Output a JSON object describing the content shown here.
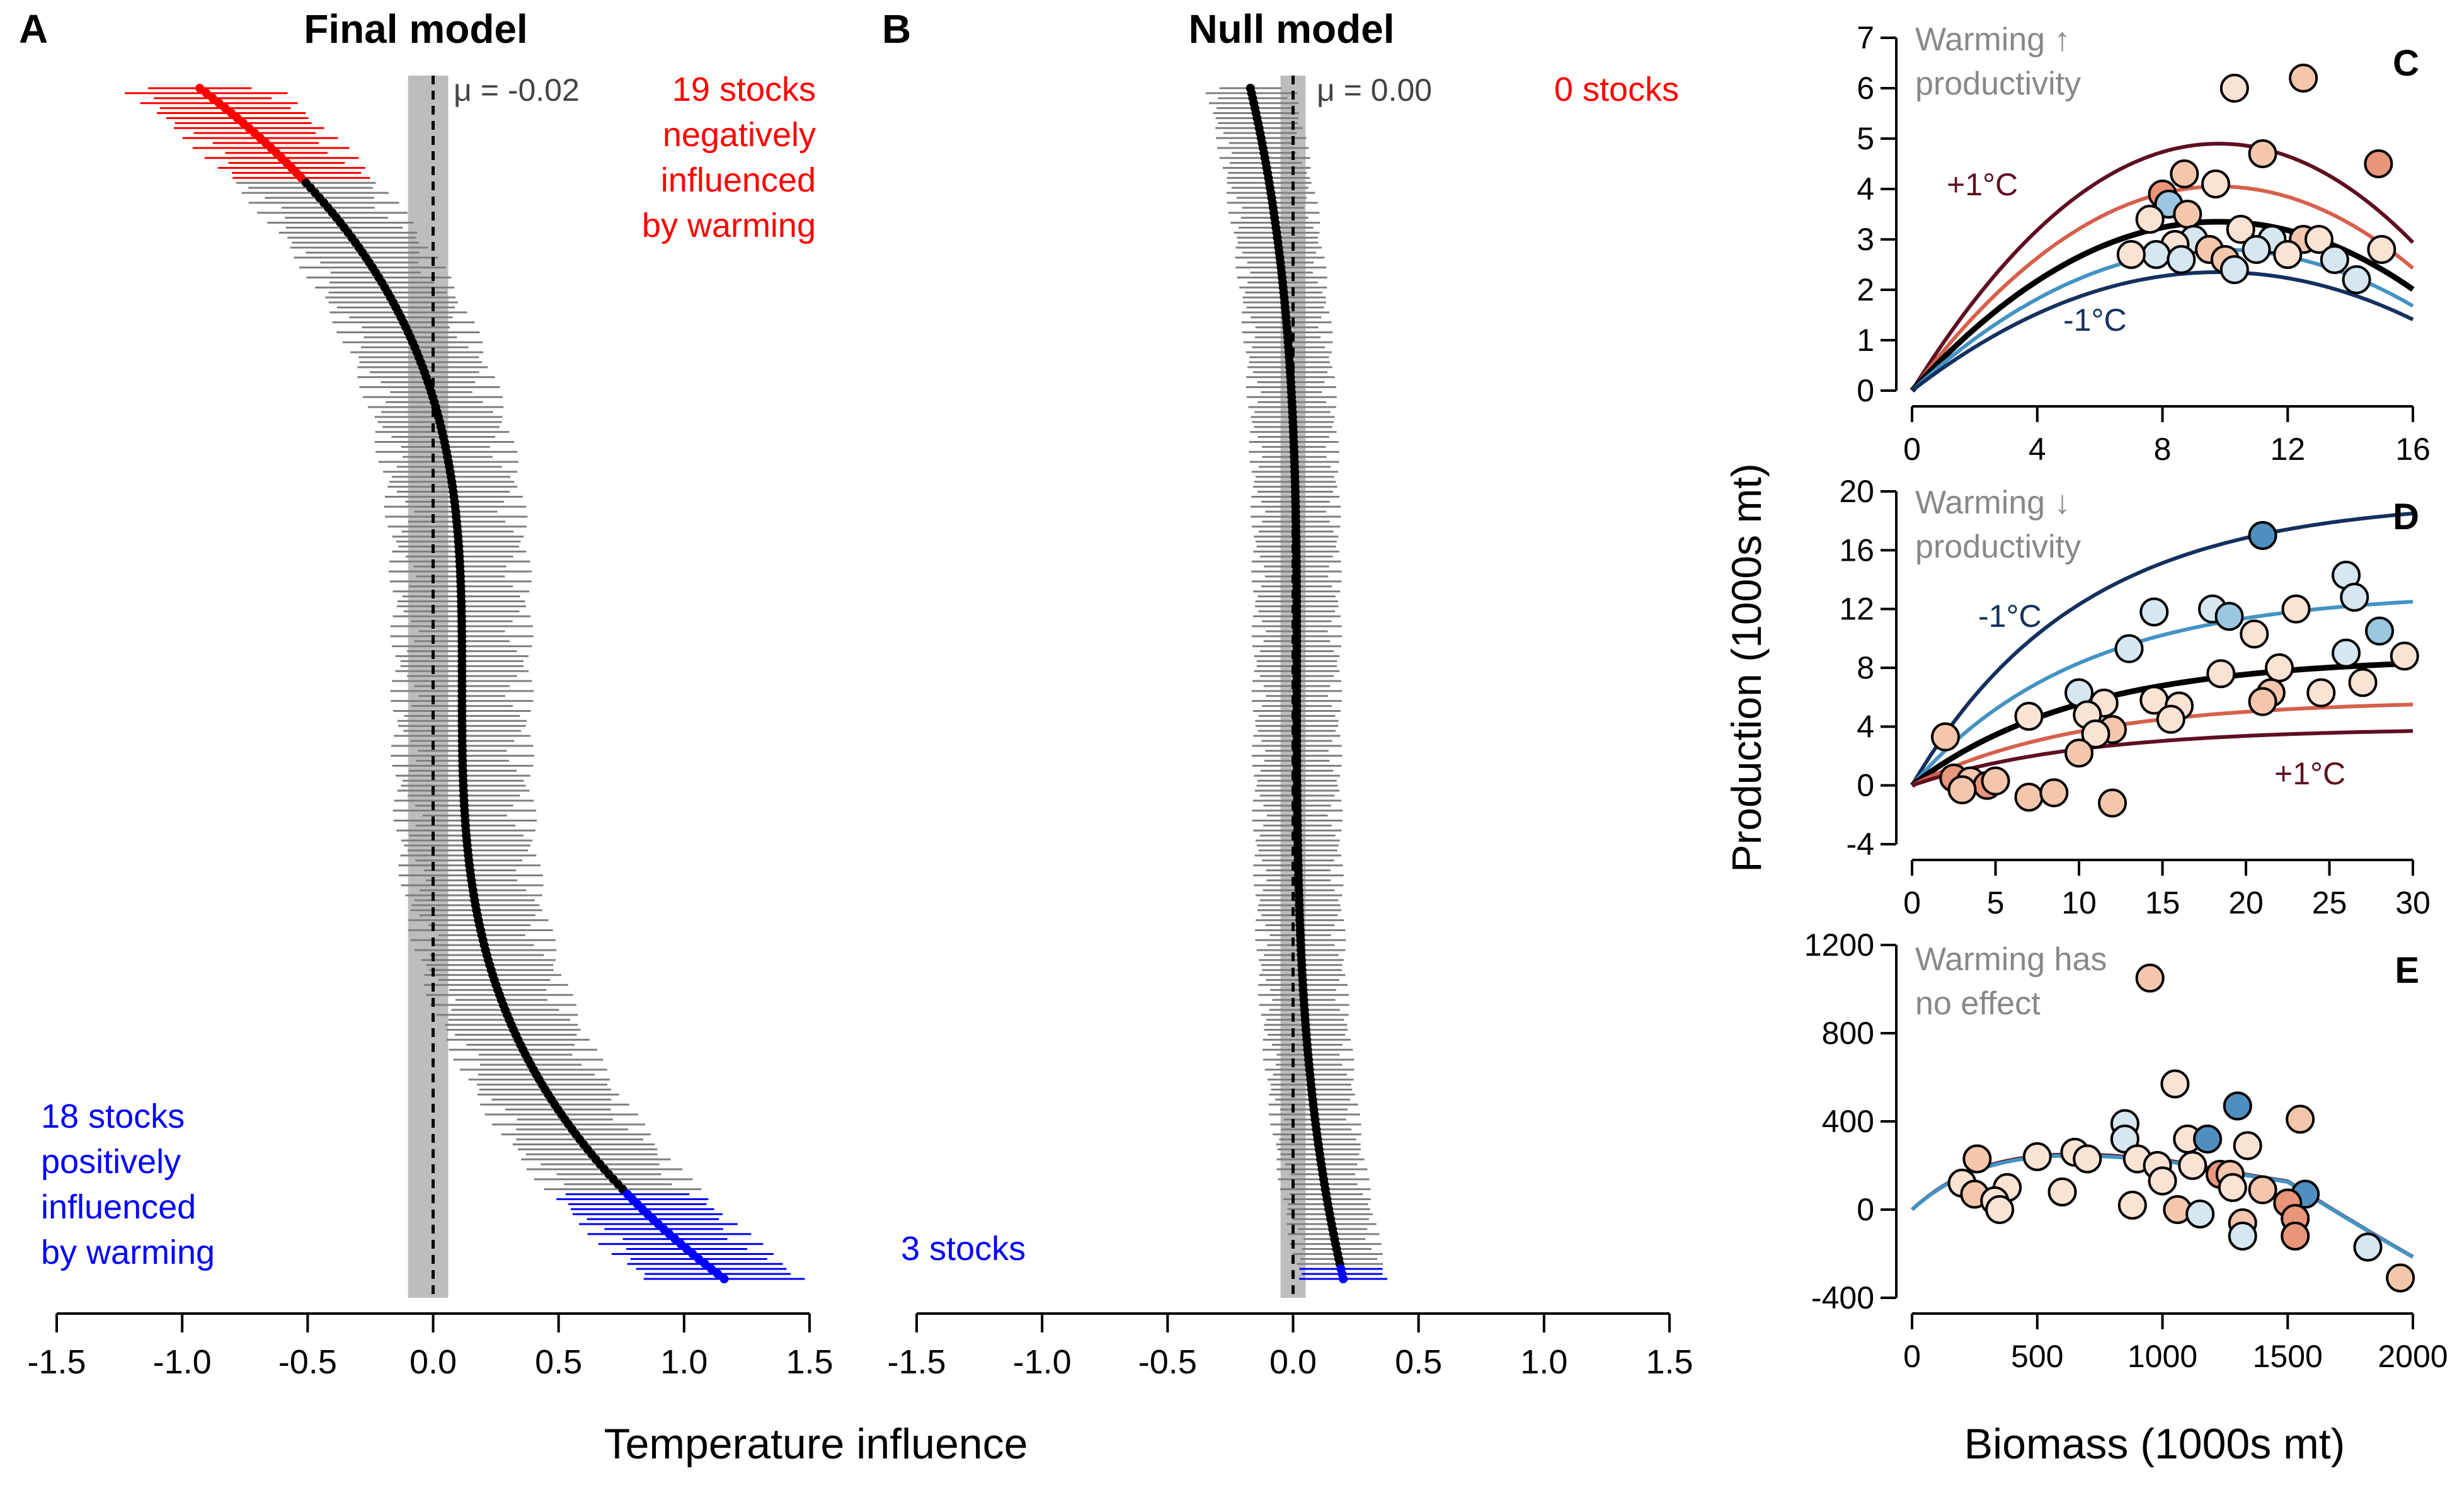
{
  "figure": {
    "colors": {
      "negative": "#ff0000",
      "positive": "#0000ff",
      "neutral_bar": "#7f7f7f",
      "shade": "#bdbdbd",
      "point": "#000000",
      "mu_text": "#444444",
      "note_text": "#888888",
      "warm_dark": "#5e0f22",
      "warm_light": "#d6604d",
      "cool_light": "#4393c3",
      "cool_dark": "#14305e"
    },
    "xaxis_label": "Temperature influence",
    "ylabel_right": "Production (1000s mt)",
    "xlabel_right": "Biomass (1000s mt)"
  },
  "chart_data": [
    {
      "id": "A",
      "panel_letter": "A",
      "type": "forest",
      "title": "Final model",
      "xlim": [
        -1.5,
        1.5
      ],
      "x_ticks": [
        "-1.5",
        "-1.0",
        "-0.5",
        "0.0",
        "0.5",
        "1.0",
        "1.5"
      ],
      "n_stocks": 240,
      "mean_label": "μ = -0.02",
      "mean": -0.02,
      "shade_range": [
        -0.1,
        0.06
      ],
      "estimate_range": [
        -0.93,
        1.16
      ],
      "negative_count": 19,
      "positive_count": 18,
      "negative_note": [
        "19 stocks",
        "negatively",
        "influenced",
        "by warming"
      ],
      "positive_note": [
        "18 stocks",
        "positively",
        "influenced",
        "by warming"
      ]
    },
    {
      "id": "B",
      "panel_letter": "B",
      "type": "forest",
      "title": "Null model",
      "xlim": [
        -1.5,
        1.5
      ],
      "x_ticks": [
        "-1.5",
        "-1.0",
        "-0.5",
        "0.0",
        "0.5",
        "1.0",
        "1.5"
      ],
      "n_stocks": 240,
      "mean_label": "μ = 0.00",
      "mean": 0.0,
      "shade_range": [
        -0.05,
        0.05
      ],
      "estimate_range": [
        -0.17,
        0.2
      ],
      "negative_count": 0,
      "positive_count": 3,
      "negative_note": [
        "0 stocks"
      ],
      "positive_note": [
        "3 stocks"
      ]
    },
    {
      "id": "C",
      "panel_letter": "C",
      "type": "scatter",
      "note": [
        "Warming ↑",
        "productivity"
      ],
      "xlim": [
        0,
        16
      ],
      "ylim": [
        0,
        7
      ],
      "x_ticks": [
        "0",
        "4",
        "8",
        "12",
        "16"
      ],
      "y_ticks": [
        "0",
        "1",
        "2",
        "3",
        "4",
        "5",
        "6",
        "7"
      ],
      "curve_labels": [
        "+1°C",
        "-1°C"
      ],
      "curves": [
        {
          "label": "+1°C",
          "peak_x": 9.8,
          "peak_y": 4.9,
          "role": "warm_dark"
        },
        {
          "label": "",
          "peak_x": 9.8,
          "peak_y": 4.05,
          "role": "warm_light"
        },
        {
          "label": "",
          "peak_x": 9.8,
          "peak_y": 3.35,
          "role": "black"
        },
        {
          "label": "",
          "peak_x": 9.8,
          "peak_y": 2.8,
          "role": "cool_light"
        },
        {
          "label": "-1°C",
          "peak_x": 9.8,
          "peak_y": 2.35,
          "role": "cool_dark"
        }
      ],
      "points": [
        {
          "x": 10.3,
          "y": 6.0,
          "c": "#fbe3d4"
        },
        {
          "x": 12.5,
          "y": 6.2,
          "c": "#f4c7ac"
        },
        {
          "x": 11.2,
          "y": 4.7,
          "c": "#f4c7ac"
        },
        {
          "x": 14.9,
          "y": 4.5,
          "c": "#e9957a"
        },
        {
          "x": 8.7,
          "y": 4.3,
          "c": "#f4c7ac"
        },
        {
          "x": 8.0,
          "y": 3.9,
          "c": "#e9957a"
        },
        {
          "x": 9.7,
          "y": 4.1,
          "c": "#fbe3d4"
        },
        {
          "x": 8.2,
          "y": 3.7,
          "c": "#9bc7e0"
        },
        {
          "x": 7.6,
          "y": 3.4,
          "c": "#fbe3d4"
        },
        {
          "x": 8.8,
          "y": 3.5,
          "c": "#f4c7ac"
        },
        {
          "x": 10.5,
          "y": 3.2,
          "c": "#fbe3d4"
        },
        {
          "x": 11.5,
          "y": 3.0,
          "c": "#d6e7f1"
        },
        {
          "x": 12.5,
          "y": 3.0,
          "c": "#f4c7ac"
        },
        {
          "x": 13.0,
          "y": 3.0,
          "c": "#fbe3d4"
        },
        {
          "x": 9.0,
          "y": 3.0,
          "c": "#d6e7f1"
        },
        {
          "x": 9.5,
          "y": 2.8,
          "c": "#f4c7ac"
        },
        {
          "x": 8.4,
          "y": 2.9,
          "c": "#fbe3d4"
        },
        {
          "x": 7.8,
          "y": 2.7,
          "c": "#d6e7f1"
        },
        {
          "x": 7.0,
          "y": 2.7,
          "c": "#fbe3d4"
        },
        {
          "x": 10.0,
          "y": 2.6,
          "c": "#f4c7ac"
        },
        {
          "x": 11.0,
          "y": 2.8,
          "c": "#d6e7f1"
        },
        {
          "x": 12.0,
          "y": 2.7,
          "c": "#fbe3d4"
        },
        {
          "x": 13.5,
          "y": 2.6,
          "c": "#d6e7f1"
        },
        {
          "x": 14.2,
          "y": 2.2,
          "c": "#d6e7f1"
        },
        {
          "x": 15.0,
          "y": 2.8,
          "c": "#fbe3d4"
        },
        {
          "x": 10.3,
          "y": 2.4,
          "c": "#d6e7f1"
        },
        {
          "x": 8.6,
          "y": 2.6,
          "c": "#d6e7f1"
        }
      ]
    },
    {
      "id": "D",
      "panel_letter": "D",
      "type": "scatter",
      "note": [
        "Warming ↓",
        "productivity"
      ],
      "xlim": [
        0,
        30
      ],
      "ylim": [
        -4,
        20
      ],
      "x_ticks": [
        "0",
        "5",
        "10",
        "15",
        "20",
        "25",
        "30"
      ],
      "y_ticks": [
        "-4",
        "0",
        "4",
        "8",
        "12",
        "16",
        "20"
      ],
      "curve_labels": [
        "-1°C",
        "+1°C"
      ],
      "curves": [
        {
          "label": "-1°C",
          "peak_x": 30,
          "peak_y": 18.5,
          "role": "cool_dark"
        },
        {
          "label": "",
          "peak_x": 30,
          "peak_y": 12.5,
          "role": "cool_light"
        },
        {
          "label": "",
          "peak_x": 30,
          "peak_y": 8.3,
          "role": "black"
        },
        {
          "label": "",
          "peak_x": 30,
          "peak_y": 5.5,
          "role": "warm_light"
        },
        {
          "label": "+1°C",
          "peak_x": 30,
          "peak_y": 3.7,
          "role": "warm_dark"
        }
      ],
      "points": [
        {
          "x": 21.0,
          "y": 17.0,
          "c": "#4f8fc0"
        },
        {
          "x": 26.0,
          "y": 14.3,
          "c": "#d6e7f1"
        },
        {
          "x": 18.0,
          "y": 12.0,
          "c": "#d6e7f1"
        },
        {
          "x": 19.0,
          "y": 11.5,
          "c": "#9bc7e0"
        },
        {
          "x": 23.0,
          "y": 12.0,
          "c": "#fbe3d4"
        },
        {
          "x": 26.5,
          "y": 12.8,
          "c": "#d6e7f1"
        },
        {
          "x": 14.5,
          "y": 11.8,
          "c": "#d6e7f1"
        },
        {
          "x": 20.5,
          "y": 10.3,
          "c": "#fbe3d4"
        },
        {
          "x": 28.0,
          "y": 10.5,
          "c": "#9bc7e0"
        },
        {
          "x": 13.0,
          "y": 9.3,
          "c": "#d6e7f1"
        },
        {
          "x": 26.0,
          "y": 9.0,
          "c": "#d6e7f1"
        },
        {
          "x": 29.5,
          "y": 8.8,
          "c": "#fbe3d4"
        },
        {
          "x": 18.5,
          "y": 7.6,
          "c": "#fbe3d4"
        },
        {
          "x": 22.0,
          "y": 8.0,
          "c": "#fbe3d4"
        },
        {
          "x": 27.0,
          "y": 7.0,
          "c": "#fbe3d4"
        },
        {
          "x": 10.0,
          "y": 6.3,
          "c": "#d6e7f1"
        },
        {
          "x": 11.5,
          "y": 5.6,
          "c": "#fbe3d4"
        },
        {
          "x": 14.5,
          "y": 5.8,
          "c": "#fbe3d4"
        },
        {
          "x": 16.0,
          "y": 5.4,
          "c": "#fbe3d4"
        },
        {
          "x": 21.5,
          "y": 6.3,
          "c": "#f4c7ac"
        },
        {
          "x": 24.5,
          "y": 6.3,
          "c": "#fbe3d4"
        },
        {
          "x": 15.5,
          "y": 4.5,
          "c": "#fbe3d4"
        },
        {
          "x": 10.5,
          "y": 4.8,
          "c": "#fbe3d4"
        },
        {
          "x": 12.0,
          "y": 3.8,
          "c": "#f4c7ac"
        },
        {
          "x": 11.0,
          "y": 3.5,
          "c": "#fbe3d4"
        },
        {
          "x": 7.0,
          "y": 4.7,
          "c": "#fbe3d4"
        },
        {
          "x": 21.0,
          "y": 5.7,
          "c": "#f4c7ac"
        },
        {
          "x": 2.0,
          "y": 3.3,
          "c": "#f4c7ac"
        },
        {
          "x": 2.5,
          "y": 0.5,
          "c": "#e9957a"
        },
        {
          "x": 3.5,
          "y": 0.3,
          "c": "#f4c7ac"
        },
        {
          "x": 4.5,
          "y": 0.0,
          "c": "#e9957a"
        },
        {
          "x": 5.0,
          "y": 0.3,
          "c": "#f4c7ac"
        },
        {
          "x": 3.0,
          "y": -0.3,
          "c": "#f4c7ac"
        },
        {
          "x": 7.0,
          "y": -0.8,
          "c": "#f4c7ac"
        },
        {
          "x": 8.5,
          "y": -0.5,
          "c": "#f4c7ac"
        },
        {
          "x": 10.0,
          "y": 2.2,
          "c": "#f4c7ac"
        },
        {
          "x": 12.0,
          "y": -1.2,
          "c": "#f4c7ac"
        }
      ]
    },
    {
      "id": "E",
      "panel_letter": "E",
      "type": "scatter",
      "note": [
        "Warming has",
        "no effect"
      ],
      "xlim": [
        0,
        2000
      ],
      "ylim": [
        -400,
        1200
      ],
      "x_ticks": [
        "0",
        "500",
        "1000",
        "1500",
        "2000"
      ],
      "y_ticks": [
        "-400",
        "0",
        "400",
        "800",
        "1200"
      ],
      "curve_labels": [],
      "curves": [
        {
          "label": "",
          "peak_x": 650,
          "peak_y": 250,
          "role": "warm_dark"
        },
        {
          "label": "",
          "peak_x": 650,
          "peak_y": 245,
          "role": "cool_light"
        }
      ],
      "points": [
        {
          "x": 950,
          "y": 1050,
          "c": "#f4c7ac"
        },
        {
          "x": 1050,
          "y": 570,
          "c": "#fbe3d4"
        },
        {
          "x": 1300,
          "y": 470,
          "c": "#4f8fc0"
        },
        {
          "x": 1550,
          "y": 410,
          "c": "#f4c7ac"
        },
        {
          "x": 1100,
          "y": 320,
          "c": "#fbe3d4"
        },
        {
          "x": 1180,
          "y": 320,
          "c": "#4f8fc0"
        },
        {
          "x": 850,
          "y": 390,
          "c": "#d6e7f1"
        },
        {
          "x": 850,
          "y": 320,
          "c": "#d6e7f1"
        },
        {
          "x": 1340,
          "y": 290,
          "c": "#fbe3d4"
        },
        {
          "x": 650,
          "y": 260,
          "c": "#fbe3d4"
        },
        {
          "x": 500,
          "y": 240,
          "c": "#fbe3d4"
        },
        {
          "x": 260,
          "y": 230,
          "c": "#f4c7ac"
        },
        {
          "x": 700,
          "y": 230,
          "c": "#fbe3d4"
        },
        {
          "x": 900,
          "y": 230,
          "c": "#fbe3d4"
        },
        {
          "x": 980,
          "y": 200,
          "c": "#fbe3d4"
        },
        {
          "x": 1120,
          "y": 200,
          "c": "#fbe3d4"
        },
        {
          "x": 1230,
          "y": 160,
          "c": "#e9957a"
        },
        {
          "x": 1270,
          "y": 160,
          "c": "#f4c7ac"
        },
        {
          "x": 200,
          "y": 120,
          "c": "#fbe3d4"
        },
        {
          "x": 380,
          "y": 100,
          "c": "#fbe3d4"
        },
        {
          "x": 600,
          "y": 80,
          "c": "#fbe3d4"
        },
        {
          "x": 1000,
          "y": 130,
          "c": "#fbe3d4"
        },
        {
          "x": 1280,
          "y": 100,
          "c": "#fbe3d4"
        },
        {
          "x": 1400,
          "y": 90,
          "c": "#f4c7ac"
        },
        {
          "x": 1570,
          "y": 70,
          "c": "#4f8fc0"
        },
        {
          "x": 250,
          "y": 70,
          "c": "#f4c7ac"
        },
        {
          "x": 330,
          "y": 40,
          "c": "#fbe3d4"
        },
        {
          "x": 880,
          "y": 20,
          "c": "#fbe3d4"
        },
        {
          "x": 1060,
          "y": 0,
          "c": "#f4c7ac"
        },
        {
          "x": 1500,
          "y": 30,
          "c": "#e9957a"
        },
        {
          "x": 350,
          "y": 0,
          "c": "#fbe3d4"
        },
        {
          "x": 1150,
          "y": -20,
          "c": "#d6e7f1"
        },
        {
          "x": 1320,
          "y": -60,
          "c": "#f4c7ac"
        },
        {
          "x": 1530,
          "y": -40,
          "c": "#e9957a"
        },
        {
          "x": 1530,
          "y": -120,
          "c": "#e9957a"
        },
        {
          "x": 1320,
          "y": -120,
          "c": "#d6e7f1"
        },
        {
          "x": 1820,
          "y": -170,
          "c": "#d6e7f1"
        },
        {
          "x": 1950,
          "y": -310,
          "c": "#f4c7ac"
        }
      ]
    }
  ]
}
